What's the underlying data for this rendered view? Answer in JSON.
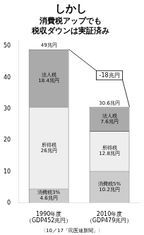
{
  "chart_data": {
    "type": "bar",
    "title": "しかし",
    "subtitle": [
      "消費税アップでも",
      "税収ダウンは実証済み"
    ],
    "categories": [
      [
        "1990年度",
        "（GDP452兆円）"
      ],
      [
        "2010年度",
        "（GDP479兆円）"
      ]
    ],
    "stacked": true,
    "data_labels": true,
    "grid": false,
    "series": [
      {
        "color": "#cccccc",
        "values": [
          4.6,
          10.2
        ],
        "value_labels": [
          "消費税3%\n4.6兆円",
          "消費税5%\n10.2兆円"
        ]
      },
      {
        "color": "#eeeeee",
        "values": [
          26.0,
          12.8
        ],
        "value_labels": [
          "所得税\n26兆円",
          "所得税\n12.8兆円"
        ]
      },
      {
        "color": "#aaaaaa",
        "values": [
          18.4,
          7.6
        ],
        "value_labels": [
          "法人税\n18.4兆円",
          "法人税\n7.6兆円"
        ]
      }
    ],
    "totals": {
      "values": [
        49,
        30.6
      ],
      "value_labels": [
        "49兆円",
        "30.6兆円"
      ]
    },
    "annotations": [
      {
        "text": "-18兆円"
      }
    ],
    "ylim": [
      0,
      52
    ],
    "yticks": [
      0,
      10,
      20,
      30,
      40,
      50
    ],
    "footer": "〈10／17「民医連新聞」〉"
  }
}
